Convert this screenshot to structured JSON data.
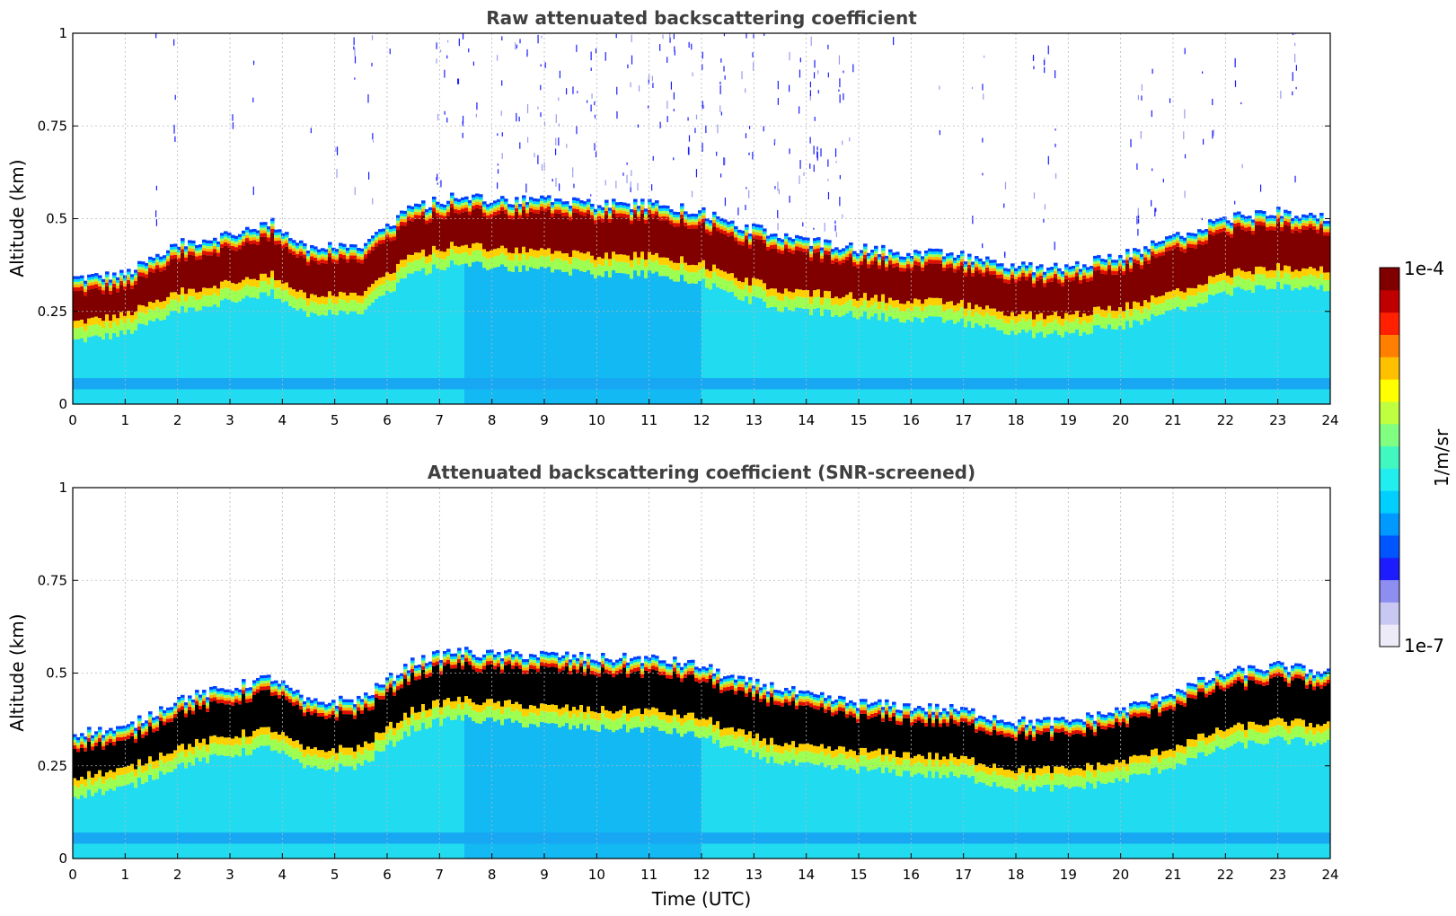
{
  "chart_data": [
    {
      "type": "heatmap",
      "title": "Raw attenuated backscattering coefficient",
      "xlabel": "",
      "ylabel": "Altitude (km)",
      "xlim": [
        0,
        24
      ],
      "ylim": [
        0,
        1
      ],
      "xticks": [
        "0",
        "1",
        "2",
        "3",
        "4",
        "5",
        "6",
        "7",
        "8",
        "9",
        "10",
        "11",
        "12",
        "13",
        "14",
        "15",
        "16",
        "17",
        "18",
        "19",
        "20",
        "21",
        "22",
        "23",
        "24"
      ],
      "yticks": [
        "0",
        "0.25",
        "0.5",
        "0.75",
        "1"
      ],
      "screened": false,
      "layer_top_km": {
        "time_utc": [
          0,
          1,
          2,
          3,
          3.8,
          4.5,
          5.5,
          6.5,
          7.3,
          8,
          9,
          10,
          11,
          12,
          12.7,
          13.5,
          14,
          15,
          16,
          17,
          18,
          19,
          20,
          21,
          22,
          23,
          24
        ],
        "altitude_km": [
          0.34,
          0.35,
          0.43,
          0.46,
          0.49,
          0.42,
          0.43,
          0.53,
          0.56,
          0.55,
          0.55,
          0.54,
          0.54,
          0.52,
          0.48,
          0.46,
          0.44,
          0.42,
          0.41,
          0.4,
          0.37,
          0.37,
          0.4,
          0.45,
          0.5,
          0.52,
          0.5
        ]
      },
      "layer_core_km": {
        "time_utc": [
          0,
          1,
          2,
          3,
          3.8,
          4.5,
          5.5,
          6.5,
          7.3,
          8,
          9,
          10,
          11,
          12,
          12.7,
          13.5,
          14,
          15,
          16,
          17,
          18,
          19,
          20,
          21,
          22,
          23,
          24
        ],
        "altitude_km": [
          0.25,
          0.27,
          0.33,
          0.36,
          0.38,
          0.32,
          0.33,
          0.43,
          0.46,
          0.45,
          0.44,
          0.43,
          0.43,
          0.41,
          0.37,
          0.34,
          0.33,
          0.32,
          0.31,
          0.3,
          0.27,
          0.27,
          0.29,
          0.33,
          0.38,
          0.4,
          0.39
        ]
      }
    },
    {
      "type": "heatmap",
      "title": "Attenuated backscattering coefficient (SNR-screened)",
      "xlabel": "Time (UTC)",
      "ylabel": "Altitude (km)",
      "xlim": [
        0,
        24
      ],
      "ylim": [
        0,
        1
      ],
      "xticks": [
        "0",
        "1",
        "2",
        "3",
        "4",
        "5",
        "6",
        "7",
        "8",
        "9",
        "10",
        "11",
        "12",
        "13",
        "14",
        "15",
        "16",
        "17",
        "18",
        "19",
        "20",
        "21",
        "22",
        "23",
        "24"
      ],
      "yticks": [
        "0",
        "0.25",
        "0.5",
        "0.75",
        "1"
      ],
      "screened": true,
      "saturated_color": "#000000"
    }
  ],
  "colorbar": {
    "label": "1/m/sr",
    "max_label": "1e-4",
    "min_label": "1e-7",
    "colors": [
      "#ecebf7",
      "#c8c8f2",
      "#8e8ef0",
      "#1c1cff",
      "#0055ff",
      "#0099ff",
      "#00cfff",
      "#22eef0",
      "#40f8c0",
      "#80ff80",
      "#c0ff40",
      "#ffff00",
      "#ffc000",
      "#ff8000",
      "#ff2000",
      "#c00000",
      "#800000"
    ]
  }
}
